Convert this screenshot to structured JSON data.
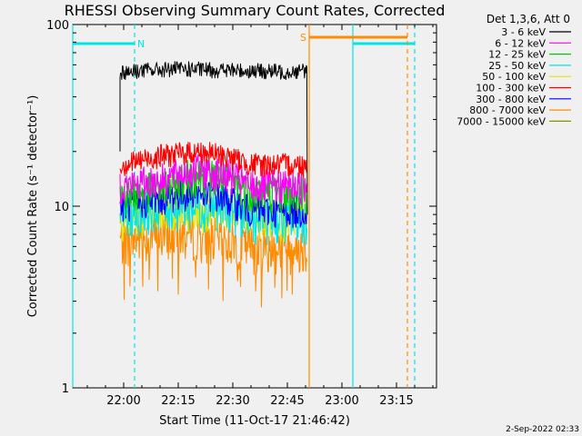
{
  "chart_data": {
    "type": "line",
    "title": "RHESSI Observing Summary Count Rates, Corrected",
    "xlabel": "Start Time (11-Oct-17 21:46:42)",
    "ylabel": "Corrected Count Rate (s⁻¹ detector⁻¹)",
    "yscale": "log",
    "ylim": [
      1,
      100
    ],
    "xlim": [
      "21:46",
      "23:26"
    ],
    "xticks": [
      "22:00",
      "22:15",
      "22:30",
      "22:45",
      "23:00",
      "23:15"
    ],
    "yticks": [
      "1",
      "10",
      "100"
    ],
    "legend_title": "Det 1,3,6, Att 0",
    "legend_position": "top-right",
    "footer": "2-Sep-2022 02:33",
    "data_window": [
      "21:59",
      "22:50"
    ],
    "series": [
      {
        "name": "3 - 6 keV",
        "color": "#000000",
        "x": [
          "22:00",
          "22:05",
          "22:15",
          "22:30",
          "22:45",
          "22:50"
        ],
        "y": [
          55,
          56,
          57,
          56,
          55,
          56
        ]
      },
      {
        "name": "6 - 12 keV",
        "color": "#ff00ff",
        "x": [
          "22:00",
          "22:10",
          "22:20",
          "22:28",
          "22:35",
          "22:50"
        ],
        "y": [
          13,
          14,
          16,
          15,
          13,
          13
        ]
      },
      {
        "name": "12 - 25 keV",
        "color": "#00cc00",
        "x": [
          "22:00",
          "22:10",
          "22:20",
          "22:28",
          "22:35",
          "22:50"
        ],
        "y": [
          11.5,
          12.5,
          15,
          14,
          12,
          12
        ]
      },
      {
        "name": "25 - 50 keV",
        "color": "#00e5e5",
        "x": [
          "22:00",
          "22:10",
          "22:20",
          "22:28",
          "22:35",
          "22:50"
        ],
        "y": [
          9,
          10,
          10,
          10,
          8.5,
          8.5
        ]
      },
      {
        "name": "50 - 100 keV",
        "color": "#e5e500",
        "x": [
          "22:00",
          "22:10",
          "22:20",
          "22:28",
          "22:35",
          "22:50"
        ],
        "y": [
          8.5,
          9.5,
          9.5,
          9.5,
          8.5,
          8.5
        ]
      },
      {
        "name": "100 - 300 keV",
        "color": "#ff0000",
        "x": [
          "22:00",
          "22:10",
          "22:20",
          "22:28",
          "22:35",
          "22:50"
        ],
        "y": [
          17,
          19,
          20,
          19,
          17,
          17
        ]
      },
      {
        "name": "300 - 800 keV",
        "color": "#0000ff",
        "x": [
          "22:00",
          "22:10",
          "22:20",
          "22:28",
          "22:35",
          "22:50"
        ],
        "y": [
          10,
          11,
          12,
          11,
          9.5,
          9.5
        ]
      },
      {
        "name": "800 - 7000 keV",
        "color": "#ff8c00",
        "x": [
          "22:00",
          "22:10",
          "22:20",
          "22:28",
          "22:35",
          "22:50"
        ],
        "y": [
          6.5,
          7,
          7,
          6.5,
          6,
          6
        ]
      },
      {
        "name": "7000 - 15000 keV",
        "color": "#8b8b00",
        "x": [],
        "y": []
      }
    ],
    "annotations": [
      {
        "label": "N",
        "color": "#00e5e5",
        "kind": "night",
        "intervals": [
          [
            "21:46",
            "22:03"
          ],
          [
            "23:03",
            "23:20"
          ]
        ],
        "dashed_at": [
          "22:03",
          "23:20"
        ],
        "solid_at": [
          "21:46",
          "23:03"
        ]
      },
      {
        "label": "S",
        "color": "#ff8c00",
        "kind": "saa",
        "intervals": [
          [
            "22:51",
            "23:18"
          ]
        ],
        "solid_at": [
          "22:51"
        ],
        "dashed_at": [
          "23:18"
        ]
      }
    ]
  }
}
